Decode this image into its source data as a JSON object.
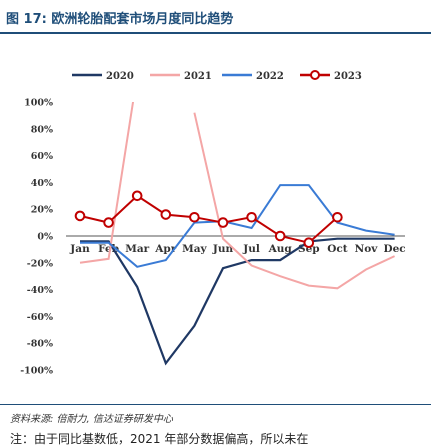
{
  "header": {
    "title": "图 17: 欧洲轮胎配套市场月度同比趋势"
  },
  "footer": {
    "source": "资料来源: 倍耐力, 信达证券研发中心",
    "note": "注：由于同比基数低，2021 年部分数据偏高，所以未在"
  },
  "chart_data": {
    "type": "line",
    "title": "",
    "xlabel": "",
    "ylabel": "",
    "categories": [
      "Jan",
      "Feb",
      "Mar",
      "Apr",
      "May",
      "Jun",
      "Jul",
      "Aug",
      "Sep",
      "Oct",
      "Nov",
      "Dec"
    ],
    "ylim": [
      -100,
      100
    ],
    "yticks": [
      "100%",
      "80%",
      "60%",
      "40%",
      "20%",
      "0%",
      "-20%",
      "-40%",
      "-60%",
      "-80%",
      "-100%"
    ],
    "legend_position": "top",
    "series": [
      {
        "name": "2020",
        "color": "#1f3864",
        "values": [
          -4,
          -4,
          -38,
          -95,
          -67,
          -24,
          -18,
          -18,
          -4,
          -2,
          -2,
          -2
        ]
      },
      {
        "name": "2021",
        "color": "#f4a6a6",
        "values": [
          -20,
          -17,
          120,
          null,
          92,
          -2,
          -22,
          -30,
          -37,
          -39,
          -25,
          -15
        ]
      },
      {
        "name": "2022",
        "color": "#3a7bd5",
        "values": [
          -5,
          -5,
          -23,
          -18,
          10,
          11,
          6,
          38,
          38,
          10,
          4,
          1
        ]
      },
      {
        "name": "2023",
        "color": "#c00000",
        "marker": true,
        "values": [
          15,
          10,
          30,
          16,
          14,
          10,
          14,
          0,
          -5,
          14,
          null,
          null
        ]
      }
    ]
  }
}
